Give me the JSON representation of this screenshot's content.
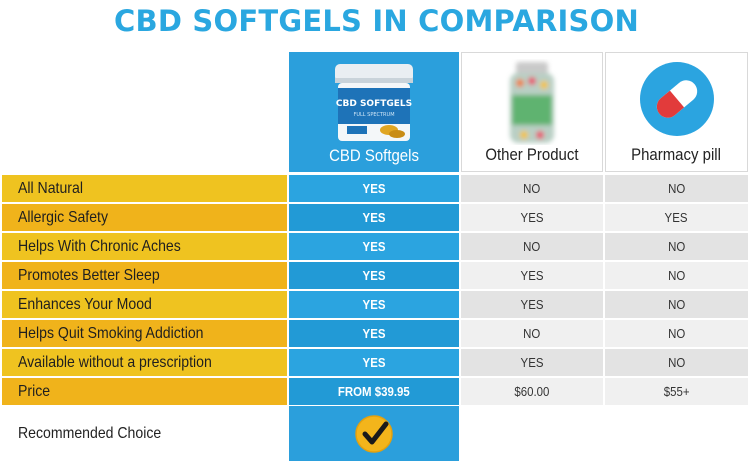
{
  "title": "CBD SOFTGELS IN COMPARISON",
  "columns": [
    {
      "label": "CBD Softgels",
      "image": "cbd-softgels-jar"
    },
    {
      "label": "Other Product",
      "image": "blurred-bottle"
    },
    {
      "label": "Pharmacy pill",
      "image": "pill-icon"
    }
  ],
  "jar_text": {
    "brand": "CBD SOFTGELS",
    "sub": "FULL SPECTRUM"
  },
  "rows": [
    {
      "feature": "All Natural",
      "values": [
        "YES",
        "NO",
        "NO"
      ]
    },
    {
      "feature": "Allergic Safety",
      "values": [
        "YES",
        "YES",
        "YES"
      ]
    },
    {
      "feature": "Helps With Chronic Aches",
      "values": [
        "YES",
        "NO",
        "NO"
      ]
    },
    {
      "feature": "Promotes Better Sleep",
      "values": [
        "YES",
        "YES",
        "NO"
      ]
    },
    {
      "feature": "Enhances Your Mood",
      "values": [
        "YES",
        "YES",
        "NO"
      ]
    },
    {
      "feature": "Helps Quit Smoking Addiction",
      "values": [
        "YES",
        "NO",
        "NO"
      ]
    },
    {
      "feature": "Available without a prescription",
      "values": [
        "YES",
        "YES",
        "NO"
      ]
    },
    {
      "feature": "Price",
      "values": [
        "FROM $39.95",
        "$60.00",
        "$55+"
      ]
    }
  ],
  "recommended": "Recommended Choice",
  "colors": {
    "title": "#2aa7e0",
    "blue": "#2b9fdc",
    "yellow": "#efc320",
    "orange": "#f0b31b",
    "grey": "#e3e3e3"
  }
}
